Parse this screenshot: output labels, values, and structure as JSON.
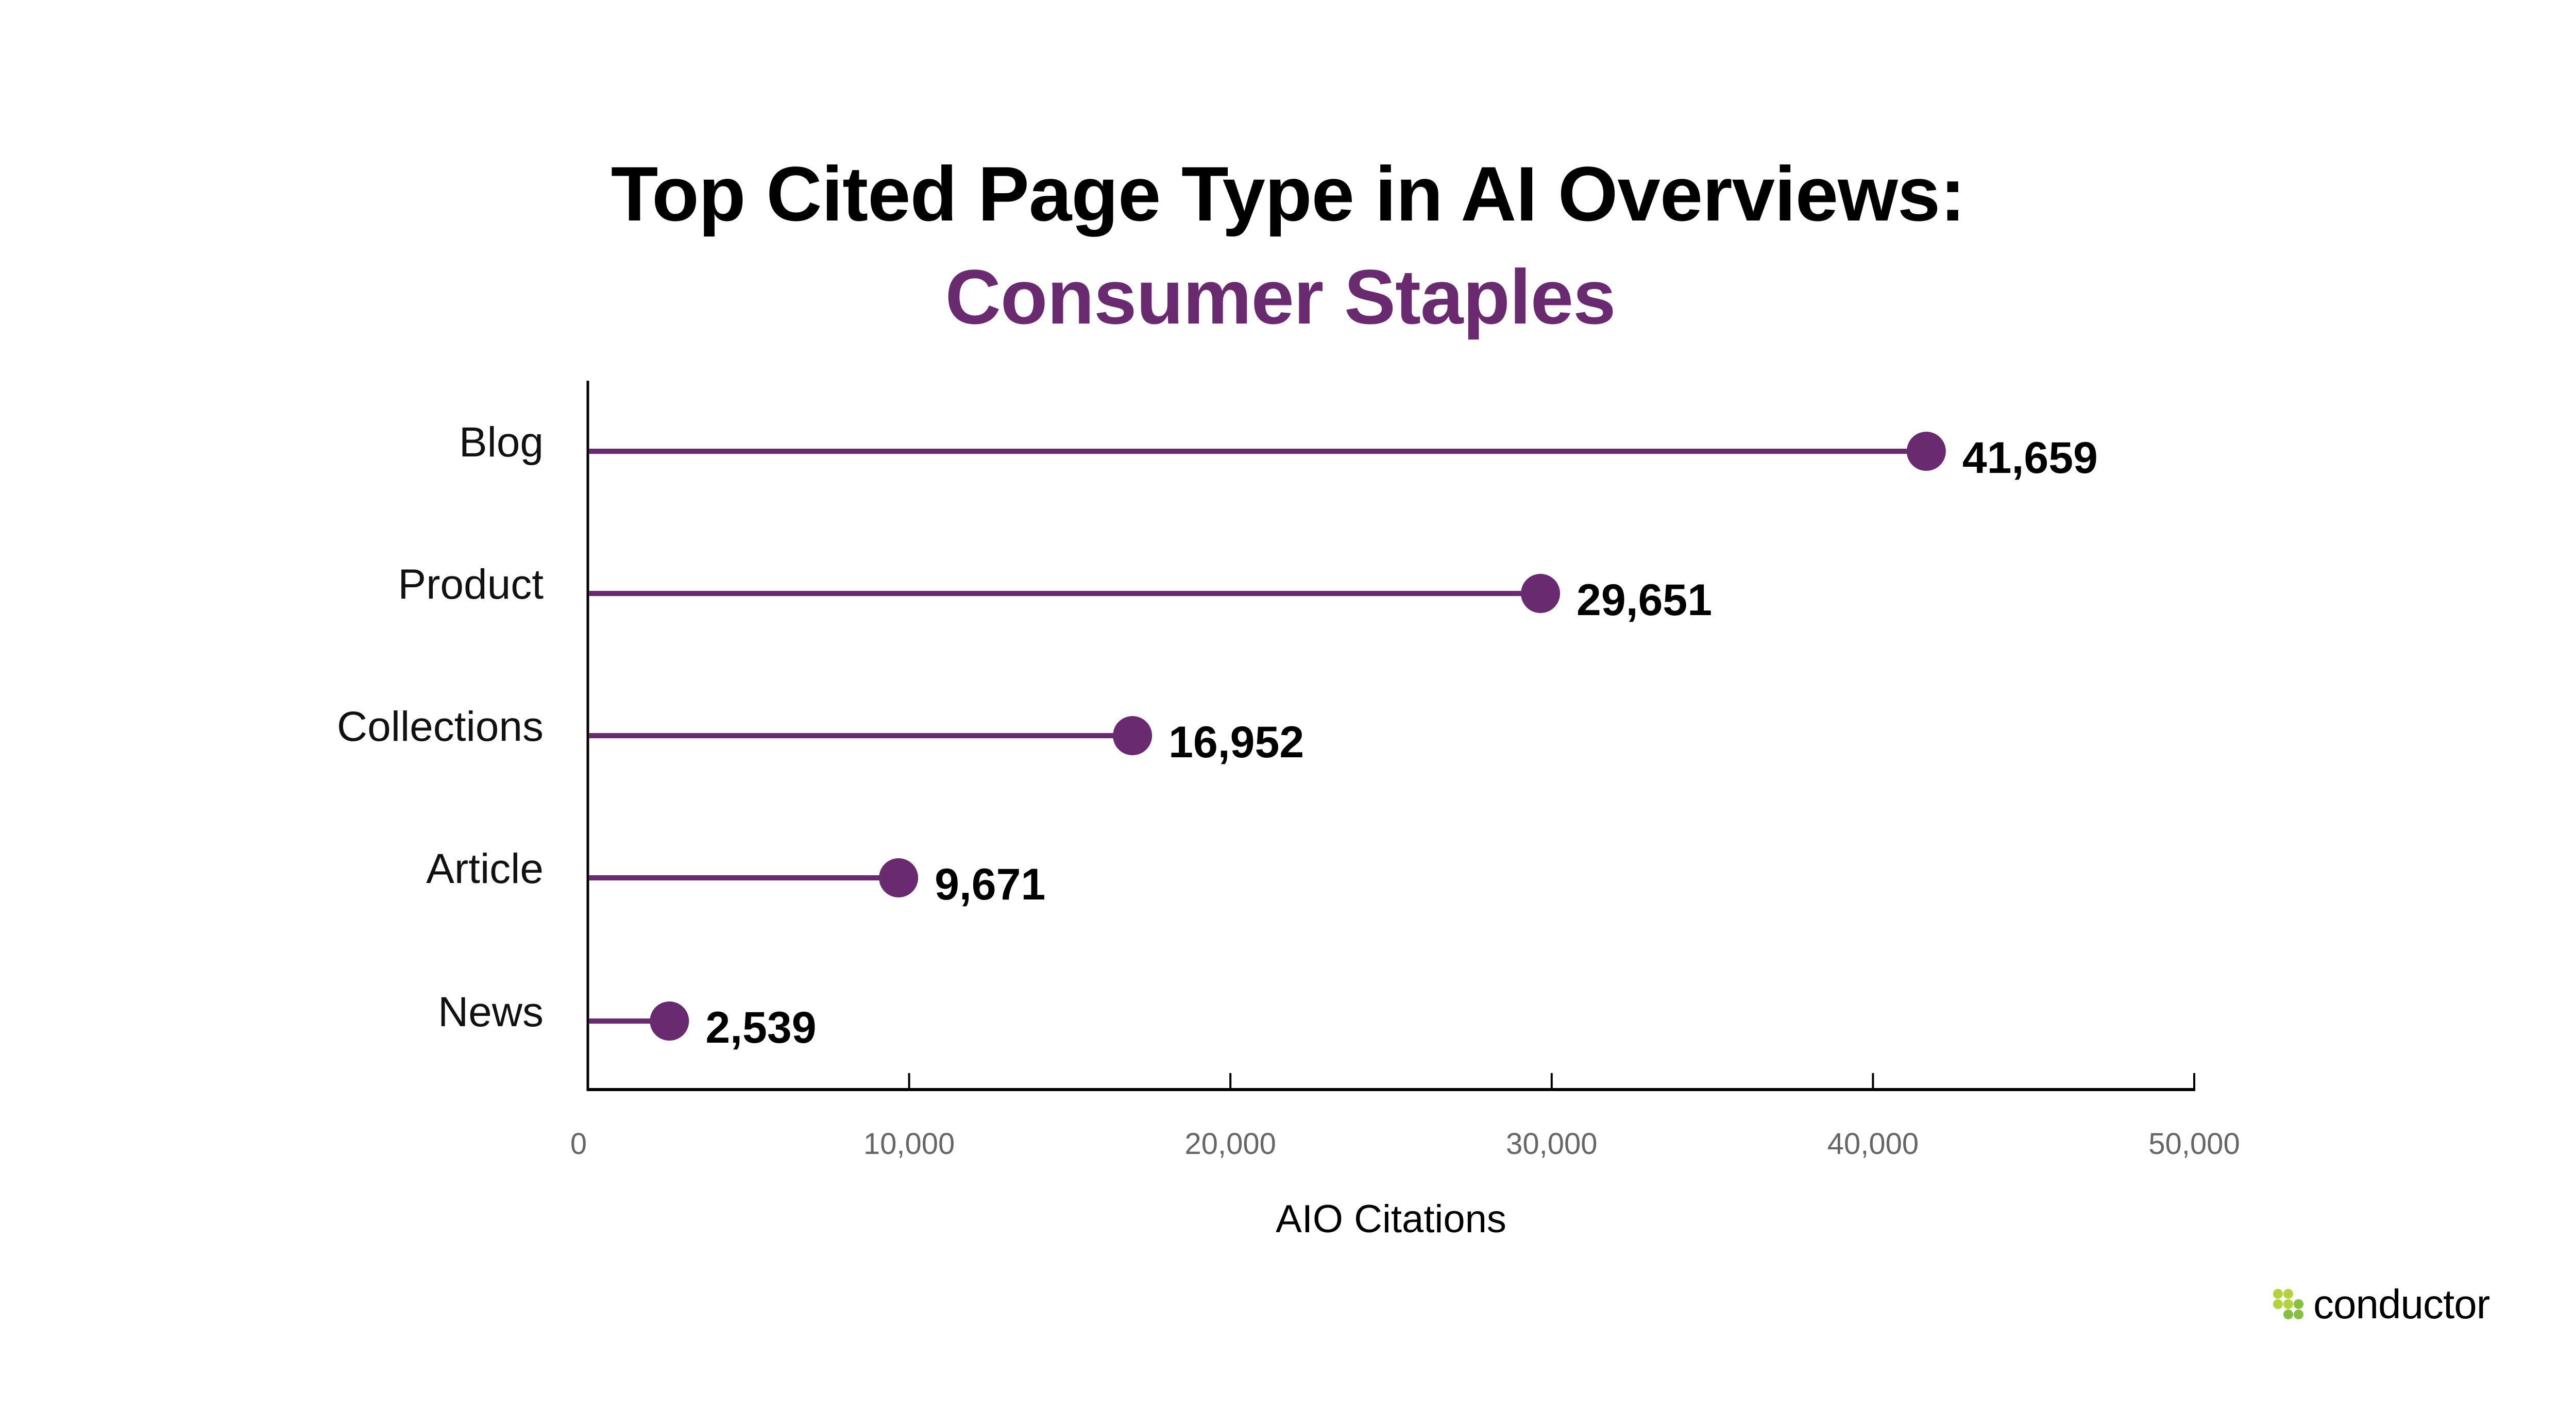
{
  "header": {
    "title": "Top Cited Page Type in AI Overviews:",
    "subtitle": "Consumer Staples"
  },
  "colors": {
    "accent": "#6A2A70",
    "title": "#000000",
    "tick_label": "#666666",
    "logo_light_green": "#B3D33E",
    "logo_dark_green": "#86C041"
  },
  "logo": {
    "text": "conductor",
    "icon": "dots-grid-icon"
  },
  "chart_data": {
    "type": "lollipop",
    "orientation": "horizontal",
    "title": "Top Cited Page Type in AI Overviews: Consumer Staples",
    "categories": [
      "Blog",
      "Product",
      "Collections",
      "Article",
      "News"
    ],
    "values": [
      41659,
      29651,
      16952,
      9671,
      2539
    ],
    "value_labels": [
      "41,659",
      "29,651",
      "16,952",
      "9,671",
      "2,539"
    ],
    "xlabel": "AIO Citations",
    "ylabel": "",
    "xlim": [
      0,
      50000
    ],
    "xticks": [
      0,
      10000,
      20000,
      30000,
      40000,
      50000
    ],
    "xtick_labels": [
      "0",
      "10,000",
      "20,000",
      "30,000",
      "40,000",
      "50,000"
    ],
    "grid": false,
    "legend": null,
    "color": "#6A2A70"
  }
}
